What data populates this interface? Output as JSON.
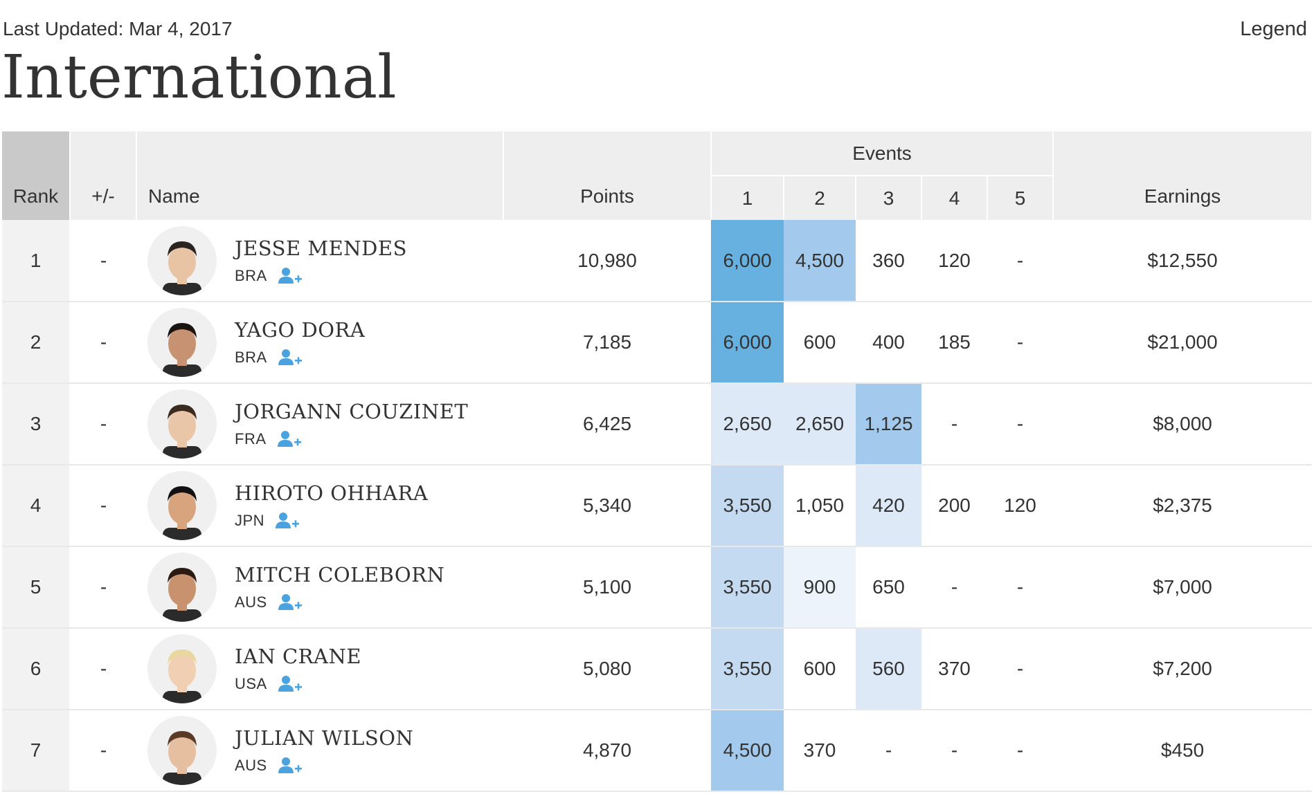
{
  "header": {
    "last_updated": "Last Updated: Mar 4, 2017",
    "legend_label": "Legend",
    "title": "International"
  },
  "table": {
    "columns": {
      "rank": "Rank",
      "change": "+/-",
      "name": "Name",
      "points": "Points",
      "events": "Events",
      "event_numbers": [
        "1",
        "2",
        "3",
        "4",
        "5"
      ],
      "earnings": "Earnings"
    },
    "shade_colors": {
      "s1": "#66b1e0",
      "s2": "#a3caec",
      "s3": "#c4daf1",
      "s4": "#dde9f7",
      "s5": "#edf3fb"
    },
    "follow_icon": "add-user-icon",
    "rows": [
      {
        "rank": "1",
        "change": "-",
        "name": "JESSE MENDES",
        "country": "BRA",
        "points": "10,980",
        "events": [
          "6,000",
          "4,500",
          "360",
          "120",
          "-"
        ],
        "earnings": "$12,550"
      },
      {
        "rank": "2",
        "change": "-",
        "name": "YAGO DORA",
        "country": "BRA",
        "points": "7,185",
        "events": [
          "6,000",
          "600",
          "400",
          "185",
          "-"
        ],
        "earnings": "$21,000"
      },
      {
        "rank": "3",
        "change": "-",
        "name": "JORGANN COUZINET",
        "country": "FRA",
        "points": "6,425",
        "events": [
          "2,650",
          "2,650",
          "1,125",
          "-",
          "-"
        ],
        "earnings": "$8,000"
      },
      {
        "rank": "4",
        "change": "-",
        "name": "HIROTO OHHARA",
        "country": "JPN",
        "points": "5,340",
        "events": [
          "3,550",
          "1,050",
          "420",
          "200",
          "120"
        ],
        "earnings": "$2,375"
      },
      {
        "rank": "5",
        "change": "-",
        "name": "MITCH COLEBORN",
        "country": "AUS",
        "points": "5,100",
        "events": [
          "3,550",
          "900",
          "650",
          "-",
          "-"
        ],
        "earnings": "$7,000"
      },
      {
        "rank": "6",
        "change": "-",
        "name": "IAN CRANE",
        "country": "USA",
        "points": "5,080",
        "events": [
          "3,550",
          "600",
          "560",
          "370",
          "-"
        ],
        "earnings": "$7,200"
      },
      {
        "rank": "7",
        "change": "-",
        "name": "JULIAN WILSON",
        "country": "AUS",
        "points": "4,870",
        "events": [
          "4,500",
          "370",
          "-",
          "-",
          "-"
        ],
        "earnings": "$450"
      }
    ]
  }
}
